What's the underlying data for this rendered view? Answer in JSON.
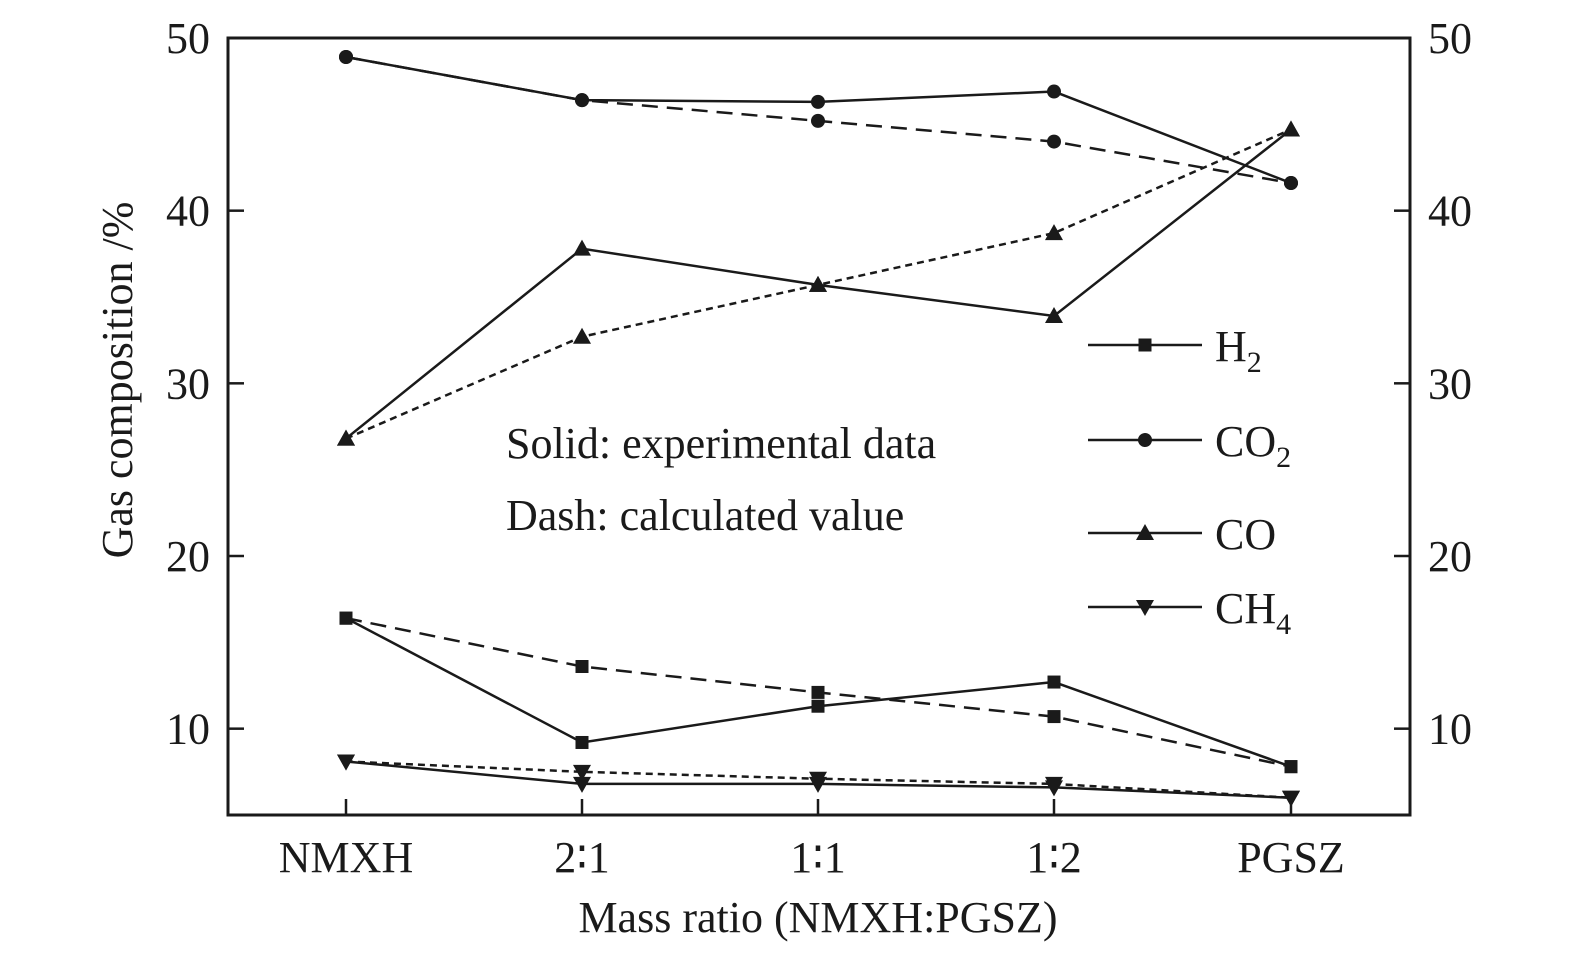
{
  "chart_data": {
    "type": "line",
    "xlabel": "Mass ratio (NMXH:PGSZ)",
    "ylabel": "Gas composition /%",
    "categories": [
      "NMXH",
      "2∶1",
      "1∶1",
      "1∶2",
      "PGSZ"
    ],
    "ylim": [
      5,
      50
    ],
    "yticks": [
      10,
      20,
      30,
      40,
      50
    ],
    "right_axis_ticks": true,
    "grid": false,
    "legend_position": "right",
    "notes": [
      "Solid: experimental data",
      "Dash: calculated value"
    ],
    "series": [
      {
        "name": "H₂",
        "marker": "square",
        "style": "solid",
        "values": [
          16.4,
          9.2,
          11.3,
          12.7,
          7.8
        ]
      },
      {
        "name": "H₂",
        "marker": "square",
        "style": "dashed",
        "values": [
          16.4,
          13.6,
          12.1,
          10.7,
          7.8
        ]
      },
      {
        "name": "CO₂",
        "marker": "circle",
        "style": "solid",
        "values": [
          48.9,
          46.4,
          46.3,
          46.9,
          41.6
        ]
      },
      {
        "name": "CO₂",
        "marker": "circle",
        "style": "dashed",
        "values": [
          48.9,
          46.4,
          45.2,
          44.0,
          41.6
        ]
      },
      {
        "name": "CO",
        "marker": "triangle-up",
        "style": "solid",
        "values": [
          26.8,
          37.8,
          35.7,
          33.9,
          44.7
        ]
      },
      {
        "name": "CO",
        "marker": "triangle-up",
        "style": "dashed",
        "values": [
          26.8,
          32.7,
          35.7,
          38.7,
          44.7
        ]
      },
      {
        "name": "CH₄",
        "marker": "triangle-down",
        "style": "solid",
        "values": [
          8.1,
          6.8,
          6.8,
          6.6,
          6.0
        ]
      },
      {
        "name": "CH₄",
        "marker": "triangle-down",
        "style": "dashed",
        "values": [
          8.1,
          7.5,
          7.1,
          6.8,
          6.0
        ]
      }
    ],
    "legend": [
      {
        "label": "H",
        "sub": "2",
        "marker": "square"
      },
      {
        "label": "CO",
        "sub": "2",
        "marker": "circle"
      },
      {
        "label": "CO",
        "sub": "",
        "marker": "triangle-up"
      },
      {
        "label": "CH",
        "sub": "4",
        "marker": "triangle-down"
      }
    ]
  }
}
